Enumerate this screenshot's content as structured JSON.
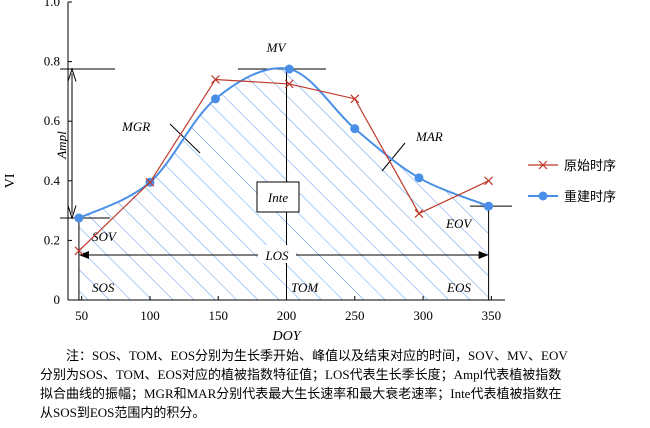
{
  "chart_data": {
    "type": "line",
    "xlabel": "DOY",
    "ylabel": "VI",
    "xlim": [
      40,
      360
    ],
    "ylim": [
      0,
      1.0
    ],
    "x_ticks": [
      "50",
      "100",
      "150",
      "200",
      "250",
      "300",
      "350"
    ],
    "y_ticks": [
      "0",
      "0.2",
      "0.4",
      "0.6",
      "0.8",
      "1.0"
    ],
    "legend_position": "right",
    "series": [
      {
        "name": "原始时序",
        "color": "#c0392b",
        "marker": "x",
        "x": [
          48,
          100,
          148,
          202,
          250,
          297,
          348
        ],
        "y": [
          0.165,
          0.395,
          0.74,
          0.725,
          0.675,
          0.29,
          0.4
        ]
      },
      {
        "name": "重建时序",
        "color": "#4a8fe7",
        "marker": "circle",
        "x": [
          48,
          100,
          148,
          202,
          250,
          297,
          348
        ],
        "y": [
          0.275,
          0.395,
          0.675,
          0.775,
          0.575,
          0.41,
          0.315
        ]
      }
    ],
    "annotations": {
      "sos": "SOS",
      "tom": "TOM",
      "eos": "EOS",
      "sov": "SOV",
      "mv": "MV",
      "eov": "EOV",
      "los": "LOS",
      "ampl": "Ampl",
      "mgr": "MGR",
      "mar": "MAR",
      "inte": "Inte"
    },
    "note_lines": [
      "注：SOS、TOM、EOS分别为生长季开始、峰值以及结束对应的时间，SOV、MV、EOV",
      "分别为SOS、TOM、EOS对应的植被指数特征值；LOS代表生长季长度；Ampl代表植被指数",
      "拟合曲线的振幅；MGR和MAR分别代表最大生长速率和最大衰老速率；Inte代表植被指数在",
      "从SOS到EOS范围内的积分。"
    ]
  }
}
